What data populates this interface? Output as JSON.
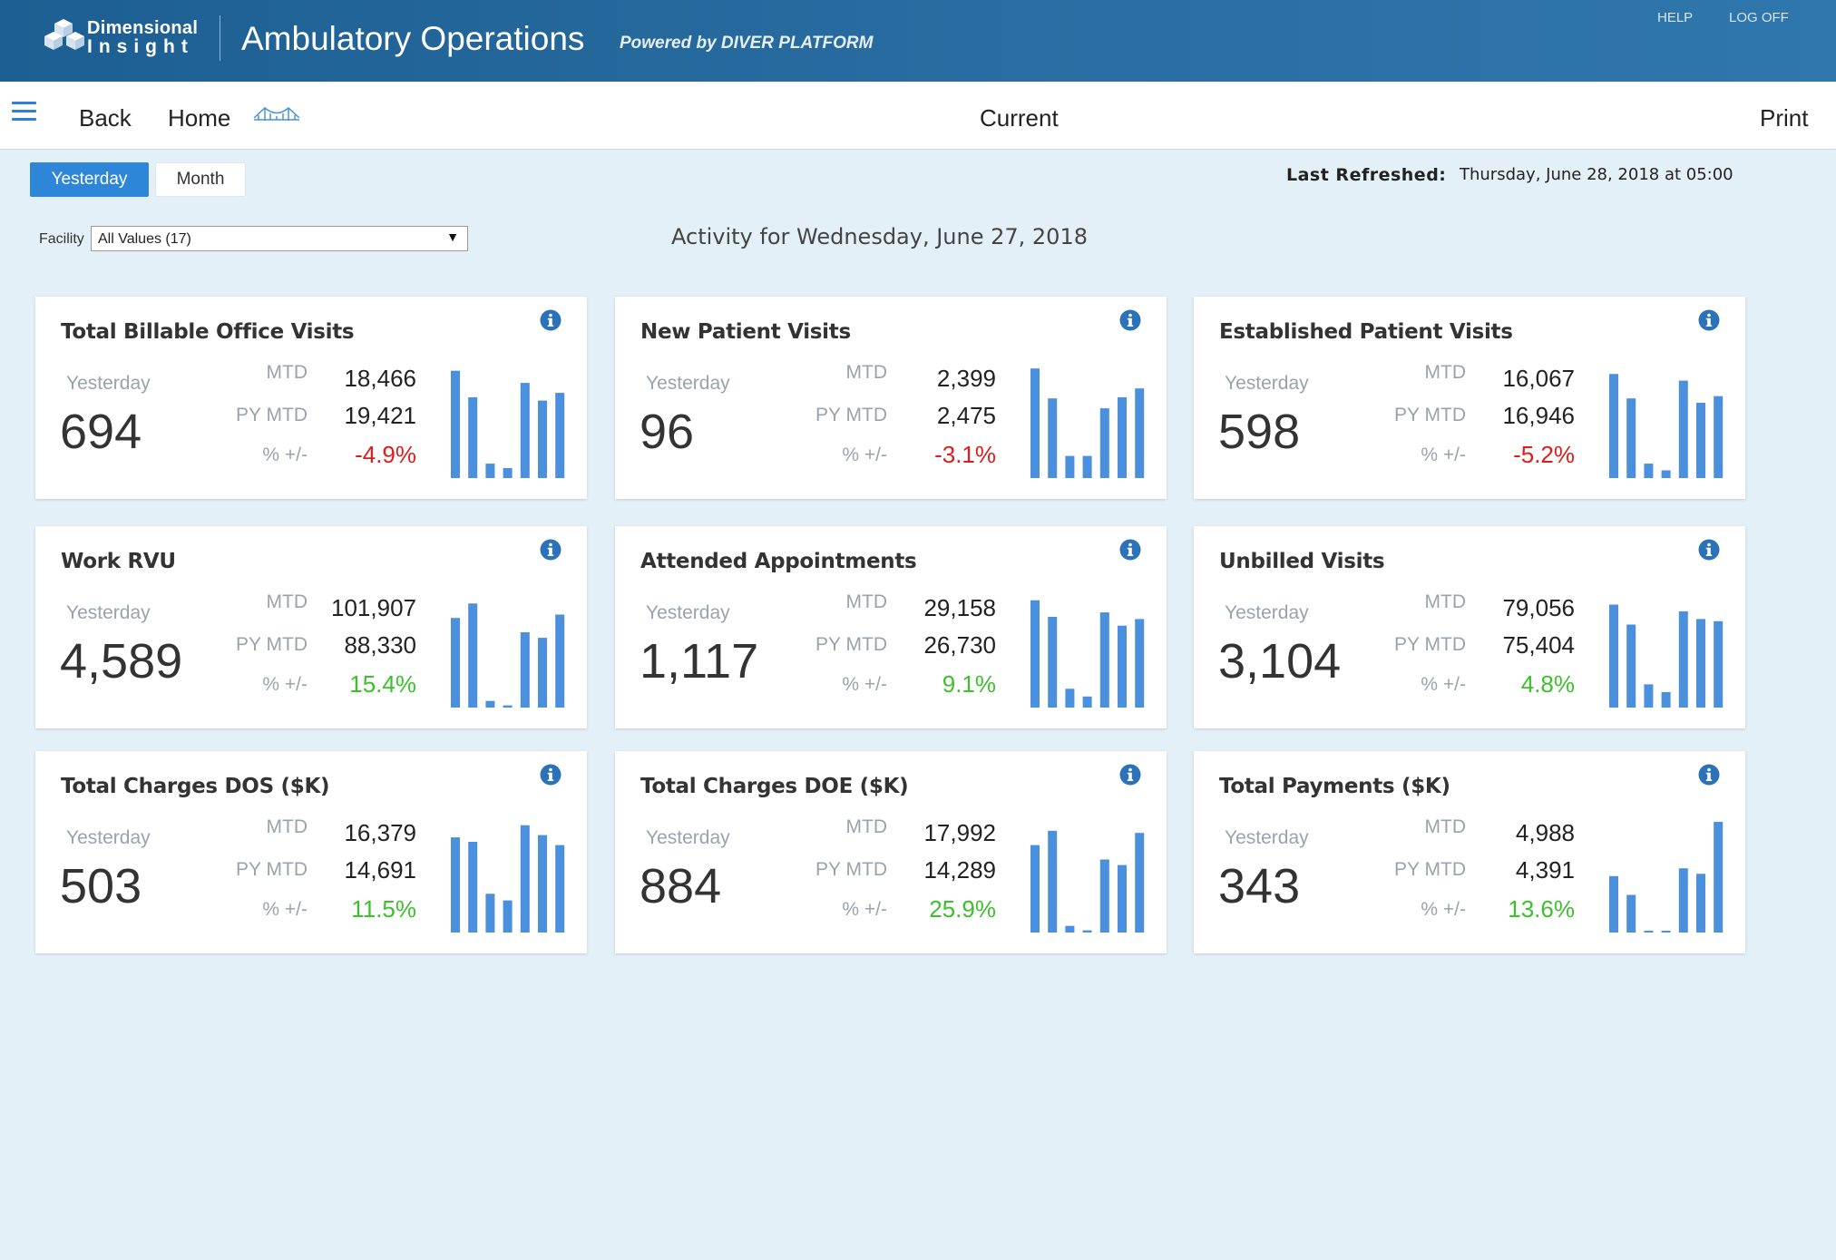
{
  "header": {
    "logo_line1": "Dimensional",
    "logo_line2": "Insight",
    "app_title": "Ambulatory Operations",
    "powered_by": "Powered by DIVER PLATFORM",
    "help": "HELP",
    "log_off": "LOG OFF"
  },
  "nav": {
    "back": "Back",
    "home": "Home",
    "current": "Current",
    "print": "Print"
  },
  "toggle": {
    "yesterday": "Yesterday",
    "month": "Month"
  },
  "refresh": {
    "label": "Last Refreshed:",
    "value": "Thursday, June 28, 2018 at 05:00"
  },
  "filter": {
    "label": "Facility",
    "value": "All Values (17)"
  },
  "activity_title": "Activity for Wednesday, June 27, 2018",
  "labels": {
    "yesterday": "Yesterday",
    "mtd": "MTD",
    "py_mtd": "PY MTD",
    "pct": "% +/-"
  },
  "colors": {
    "bar": "#4a90dc",
    "negative": "#e01b1b",
    "positive": "#3cc12c",
    "info_icon": "#2b72b8"
  },
  "cards": [
    {
      "title": "Total Billable Office Visits",
      "yesterday": "694",
      "mtd": "18,466",
      "py_mtd": "19,421",
      "pct": "-4.9%",
      "trend": "negative",
      "bars": [
        0.97,
        0.73,
        0.13,
        0.09,
        0.86,
        0.7,
        0.77
      ]
    },
    {
      "title": "New Patient Visits",
      "yesterday": "96",
      "mtd": "2,399",
      "py_mtd": "2,475",
      "pct": "-3.1%",
      "trend": "negative",
      "bars": [
        0.99,
        0.72,
        0.2,
        0.2,
        0.63,
        0.73,
        0.81
      ]
    },
    {
      "title": "Established Patient Visits",
      "yesterday": "598",
      "mtd": "16,067",
      "py_mtd": "16,946",
      "pct": "-5.2%",
      "trend": "negative",
      "bars": [
        0.94,
        0.72,
        0.13,
        0.07,
        0.88,
        0.68,
        0.74
      ]
    },
    {
      "title": "Work RVU",
      "yesterday": "4,589",
      "mtd": "101,907",
      "py_mtd": "88,330",
      "pct": "15.4%",
      "trend": "positive",
      "bars": [
        0.81,
        0.94,
        0.06,
        0.02,
        0.68,
        0.63,
        0.84
      ]
    },
    {
      "title": "Attended Appointments",
      "yesterday": "1,117",
      "mtd": "29,158",
      "py_mtd": "26,730",
      "pct": "9.1%",
      "trend": "positive",
      "bars": [
        0.97,
        0.82,
        0.17,
        0.1,
        0.86,
        0.74,
        0.8
      ]
    },
    {
      "title": "Unbilled Visits",
      "yesterday": "3,104",
      "mtd": "79,056",
      "py_mtd": "75,404",
      "pct": "4.8%",
      "trend": "positive",
      "bars": [
        0.93,
        0.75,
        0.21,
        0.14,
        0.87,
        0.8,
        0.78
      ]
    },
    {
      "title": "Total Charges DOS ($K)",
      "yesterday": "503",
      "mtd": "16,379",
      "py_mtd": "14,691",
      "pct": "11.5%",
      "trend": "positive",
      "bars": [
        0.86,
        0.82,
        0.35,
        0.29,
        0.97,
        0.88,
        0.79
      ]
    },
    {
      "title": "Total Charges DOE ($K)",
      "yesterday": "884",
      "mtd": "17,992",
      "py_mtd": "14,289",
      "pct": "25.9%",
      "trend": "positive",
      "bars": [
        0.79,
        0.92,
        0.06,
        0.02,
        0.66,
        0.61,
        0.9
      ]
    },
    {
      "title": "Total Payments ($K)",
      "yesterday": "343",
      "mtd": "4,988",
      "py_mtd": "4,391",
      "pct": "13.6%",
      "trend": "positive",
      "bars": [
        0.51,
        0.34,
        0.01,
        0.01,
        0.58,
        0.53,
        1.0
      ]
    }
  ]
}
